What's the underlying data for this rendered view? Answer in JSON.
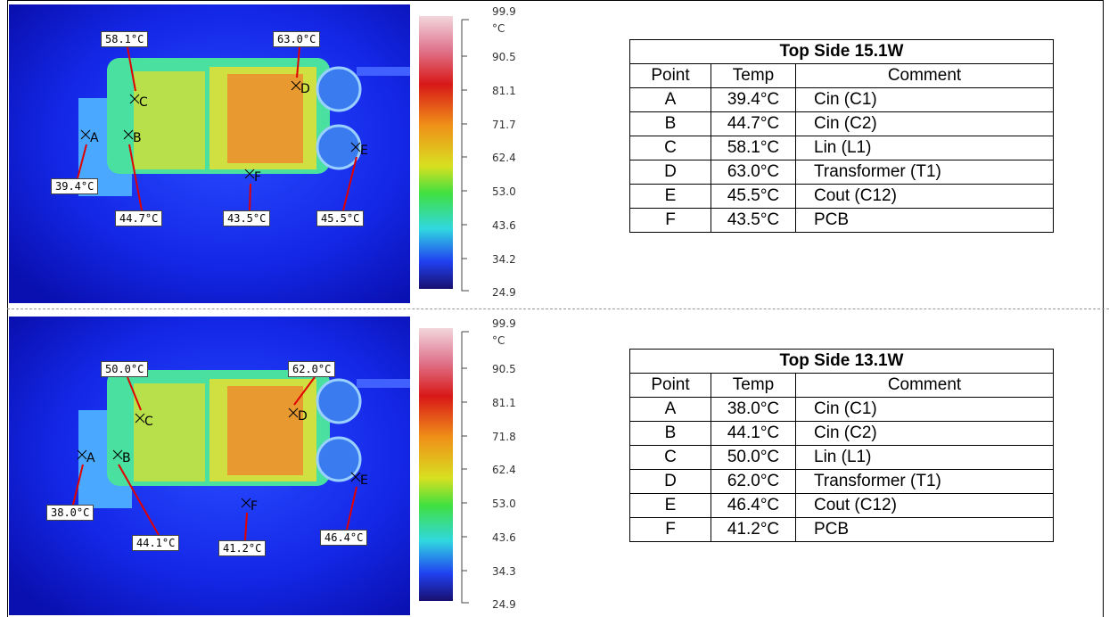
{
  "panels": [
    {
      "image": {
        "labels": [
          "58.1°C",
          "63.0°C",
          "39.4°C",
          "44.7°C",
          "43.5°C",
          "45.5°C"
        ],
        "points": [
          "C",
          "D",
          "A",
          "B",
          "F",
          "E"
        ]
      },
      "scale": [
        "99.9",
        "°C",
        "90.5",
        "81.1",
        "71.7",
        "62.4",
        "53.0",
        "43.6",
        "34.2",
        "24.9"
      ],
      "table": {
        "title": "Top Side 15.1W",
        "headers": [
          "Point",
          "Temp",
          "Comment"
        ],
        "rows": [
          [
            "A",
            "39.4°C",
            "Cin (C1)"
          ],
          [
            "B",
            "44.7°C",
            "Cin (C2)"
          ],
          [
            "C",
            "58.1°C",
            "Lin (L1)"
          ],
          [
            "D",
            "63.0°C",
            "Transformer (T1)"
          ],
          [
            "E",
            "45.5°C",
            "Cout (C12)"
          ],
          [
            "F",
            "43.5°C",
            "PCB"
          ]
        ]
      }
    },
    {
      "image": {
        "labels": [
          "50.0°C",
          "62.0°C",
          "38.0°C",
          "44.1°C",
          "41.2°C",
          "46.4°C"
        ],
        "points": [
          "C",
          "D",
          "A",
          "B",
          "F",
          "E"
        ]
      },
      "scale": [
        "99.9",
        "°C",
        "90.5",
        "81.1",
        "71.8",
        "62.4",
        "53.0",
        "43.6",
        "34.3",
        "24.9"
      ],
      "table": {
        "title": "Top Side 13.1W",
        "headers": [
          "Point",
          "Temp",
          "Comment"
        ],
        "rows": [
          [
            "A",
            "38.0°C",
            "Cin (C1)"
          ],
          [
            "B",
            "44.1°C",
            "Cin (C2)"
          ],
          [
            "C",
            "50.0°C",
            "Lin (L1)"
          ],
          [
            "D",
            "62.0°C",
            "Transformer (T1)"
          ],
          [
            "E",
            "46.4°C",
            "Cout (C12)"
          ],
          [
            "F",
            "41.2°C",
            "PCB"
          ]
        ]
      }
    }
  ]
}
